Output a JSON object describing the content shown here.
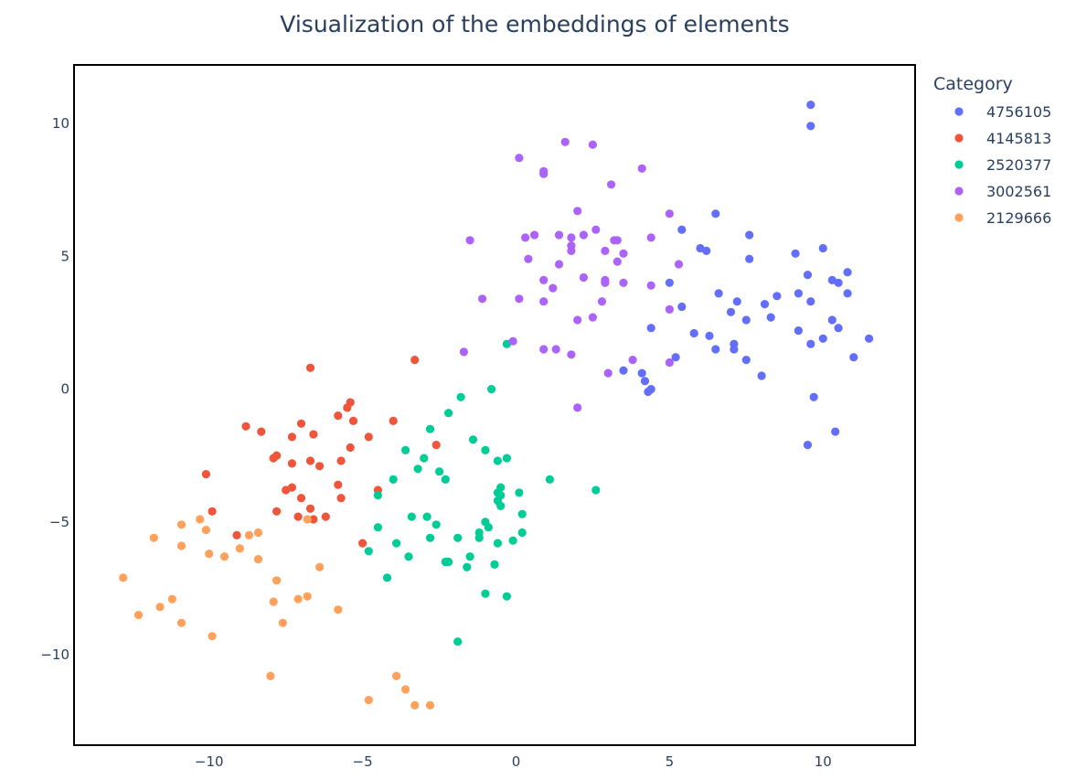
{
  "chart_data": {
    "type": "scatter",
    "title": "Visualization of the embeddings of elements",
    "xlabel": "",
    "ylabel": "",
    "xlim": [
      -14.4,
      13.0
    ],
    "ylim": [
      -13.4,
      12.2
    ],
    "x_ticks": [
      -10,
      -5,
      0,
      5,
      10
    ],
    "x_tick_labels": [
      "−10",
      "−5",
      "0",
      "5",
      "10"
    ],
    "y_ticks": [
      -10,
      -5,
      0,
      5,
      10
    ],
    "y_tick_labels": [
      "−10",
      "−5",
      "0",
      "5",
      "10"
    ],
    "grid": false,
    "legend": {
      "title": "Category",
      "placement": "right"
    },
    "series": [
      {
        "name": "4756105",
        "color": "#636efa",
        "points": [
          [
            9.6,
            10.7
          ],
          [
            9.6,
            9.9
          ],
          [
            6.5,
            6.6
          ],
          [
            5.4,
            6.0
          ],
          [
            7.6,
            5.8
          ],
          [
            6.0,
            5.3
          ],
          [
            6.2,
            5.2
          ],
          [
            7.6,
            4.9
          ],
          [
            9.1,
            5.1
          ],
          [
            10.0,
            5.3
          ],
          [
            9.5,
            4.3
          ],
          [
            10.3,
            4.1
          ],
          [
            10.5,
            4.0
          ],
          [
            10.8,
            4.4
          ],
          [
            10.8,
            3.6
          ],
          [
            5.0,
            4.0
          ],
          [
            6.6,
            3.6
          ],
          [
            7.2,
            3.3
          ],
          [
            8.1,
            3.2
          ],
          [
            8.5,
            3.5
          ],
          [
            9.2,
            3.6
          ],
          [
            9.6,
            3.3
          ],
          [
            5.4,
            3.1
          ],
          [
            7.0,
            2.9
          ],
          [
            7.5,
            2.6
          ],
          [
            8.3,
            2.7
          ],
          [
            10.3,
            2.6
          ],
          [
            10.5,
            2.3
          ],
          [
            11.5,
            1.9
          ],
          [
            4.4,
            2.3
          ],
          [
            5.8,
            2.1
          ],
          [
            6.3,
            2.0
          ],
          [
            9.2,
            2.2
          ],
          [
            10.0,
            1.9
          ],
          [
            9.6,
            1.7
          ],
          [
            7.1,
            1.7
          ],
          [
            7.1,
            1.5
          ],
          [
            6.5,
            1.5
          ],
          [
            11.0,
            1.2
          ],
          [
            5.2,
            1.2
          ],
          [
            7.5,
            1.1
          ],
          [
            3.5,
            0.7
          ],
          [
            4.1,
            0.6
          ],
          [
            8.0,
            0.5
          ],
          [
            4.2,
            0.3
          ],
          [
            4.4,
            0.0
          ],
          [
            4.3,
            -0.1
          ],
          [
            9.7,
            -0.3
          ],
          [
            10.4,
            -1.6
          ],
          [
            9.5,
            -2.1
          ]
        ]
      },
      {
        "name": "4145813",
        "color": "#EF553B",
        "points": [
          [
            -3.3,
            1.1
          ],
          [
            -6.7,
            0.8
          ],
          [
            -5.4,
            -0.5
          ],
          [
            -5.5,
            -0.7
          ],
          [
            -5.8,
            -1.0
          ],
          [
            -5.3,
            -1.2
          ],
          [
            -4.0,
            -1.2
          ],
          [
            -7.0,
            -1.3
          ],
          [
            -8.8,
            -1.4
          ],
          [
            -8.3,
            -1.6
          ],
          [
            -6.6,
            -1.7
          ],
          [
            -7.3,
            -1.8
          ],
          [
            -4.8,
            -1.8
          ],
          [
            -2.6,
            -2.1
          ],
          [
            -5.4,
            -2.2
          ],
          [
            -7.8,
            -2.5
          ],
          [
            -7.9,
            -2.6
          ],
          [
            -6.7,
            -2.7
          ],
          [
            -5.7,
            -2.7
          ],
          [
            -7.3,
            -2.8
          ],
          [
            -6.4,
            -2.9
          ],
          [
            -10.1,
            -3.2
          ],
          [
            -5.8,
            -3.6
          ],
          [
            -7.3,
            -3.7
          ],
          [
            -7.5,
            -3.8
          ],
          [
            -4.5,
            -3.8
          ],
          [
            -7.0,
            -4.1
          ],
          [
            -5.7,
            -4.1
          ],
          [
            -6.7,
            -4.5
          ],
          [
            -7.8,
            -4.6
          ],
          [
            -9.9,
            -4.6
          ],
          [
            -7.1,
            -4.8
          ],
          [
            -6.2,
            -4.8
          ],
          [
            -6.6,
            -4.9
          ],
          [
            -9.1,
            -5.5
          ],
          [
            -5.0,
            -5.8
          ]
        ]
      },
      {
        "name": "2520377",
        "color": "#00cc96",
        "points": [
          [
            -0.3,
            1.7
          ],
          [
            -0.8,
            0.0
          ],
          [
            -1.8,
            -0.3
          ],
          [
            -2.2,
            -0.9
          ],
          [
            -2.8,
            -1.5
          ],
          [
            -1.4,
            -1.9
          ],
          [
            -3.6,
            -2.3
          ],
          [
            -1.0,
            -2.3
          ],
          [
            -3.0,
            -2.6
          ],
          [
            -0.3,
            -2.6
          ],
          [
            -0.6,
            -2.7
          ],
          [
            -3.2,
            -3.0
          ],
          [
            -2.5,
            -3.1
          ],
          [
            -2.3,
            -3.4
          ],
          [
            -4.0,
            -3.4
          ],
          [
            1.1,
            -3.4
          ],
          [
            -0.5,
            -3.7
          ],
          [
            2.6,
            -3.8
          ],
          [
            -0.6,
            -3.9
          ],
          [
            0.1,
            -3.9
          ],
          [
            -4.5,
            -4.0
          ],
          [
            -0.5,
            -4.0
          ],
          [
            -0.6,
            -4.2
          ],
          [
            -0.5,
            -4.4
          ],
          [
            0.2,
            -4.7
          ],
          [
            -3.4,
            -4.8
          ],
          [
            -2.9,
            -4.8
          ],
          [
            -1.0,
            -5.0
          ],
          [
            -2.6,
            -5.1
          ],
          [
            -0.9,
            -5.2
          ],
          [
            -4.5,
            -5.2
          ],
          [
            -1.2,
            -5.4
          ],
          [
            0.2,
            -5.4
          ],
          [
            -1.2,
            -5.6
          ],
          [
            -3.9,
            -5.8
          ],
          [
            -2.8,
            -5.6
          ],
          [
            -1.9,
            -5.6
          ],
          [
            -0.1,
            -5.7
          ],
          [
            -0.6,
            -5.8
          ],
          [
            -4.8,
            -6.1
          ],
          [
            -3.5,
            -6.3
          ],
          [
            -1.5,
            -6.3
          ],
          [
            -2.3,
            -6.5
          ],
          [
            -2.2,
            -6.5
          ],
          [
            -1.6,
            -6.7
          ],
          [
            -0.7,
            -6.6
          ],
          [
            -4.2,
            -7.1
          ],
          [
            -1.0,
            -7.7
          ],
          [
            -0.3,
            -7.8
          ],
          [
            -1.9,
            -9.5
          ]
        ]
      },
      {
        "name": "3002561",
        "color": "#ab63fa",
        "points": [
          [
            1.6,
            9.3
          ],
          [
            2.5,
            9.2
          ],
          [
            0.1,
            8.7
          ],
          [
            0.9,
            8.2
          ],
          [
            0.9,
            8.1
          ],
          [
            4.1,
            8.3
          ],
          [
            3.1,
            7.7
          ],
          [
            2.0,
            6.7
          ],
          [
            5.0,
            6.6
          ],
          [
            2.6,
            6.0
          ],
          [
            0.6,
            5.8
          ],
          [
            1.4,
            5.8
          ],
          [
            1.8,
            5.7
          ],
          [
            2.2,
            5.8
          ],
          [
            0.3,
            5.7
          ],
          [
            3.3,
            5.6
          ],
          [
            3.2,
            5.6
          ],
          [
            4.4,
            5.7
          ],
          [
            -1.5,
            5.6
          ],
          [
            1.8,
            5.4
          ],
          [
            1.8,
            5.2
          ],
          [
            2.9,
            5.2
          ],
          [
            3.5,
            5.1
          ],
          [
            0.4,
            4.9
          ],
          [
            1.4,
            4.7
          ],
          [
            3.3,
            4.8
          ],
          [
            5.3,
            4.7
          ],
          [
            2.2,
            4.2
          ],
          [
            0.9,
            4.1
          ],
          [
            2.9,
            4.0
          ],
          [
            2.9,
            4.1
          ],
          [
            3.5,
            4.0
          ],
          [
            1.2,
            3.8
          ],
          [
            4.4,
            3.9
          ],
          [
            -1.1,
            3.4
          ],
          [
            0.1,
            3.4
          ],
          [
            0.9,
            3.3
          ],
          [
            2.8,
            3.3
          ],
          [
            5.0,
            3.0
          ],
          [
            2.5,
            2.7
          ],
          [
            2.0,
            2.6
          ],
          [
            -0.1,
            1.8
          ],
          [
            0.9,
            1.5
          ],
          [
            1.3,
            1.5
          ],
          [
            1.8,
            1.3
          ],
          [
            -1.7,
            1.4
          ],
          [
            3.8,
            1.1
          ],
          [
            5.0,
            1.0
          ],
          [
            3.0,
            0.6
          ],
          [
            2.0,
            -0.7
          ]
        ]
      },
      {
        "name": "2129666",
        "color": "#FFA15A",
        "points": [
          [
            -10.3,
            -4.9
          ],
          [
            -10.9,
            -5.1
          ],
          [
            -10.1,
            -5.3
          ],
          [
            -8.7,
            -5.5
          ],
          [
            -8.4,
            -5.4
          ],
          [
            -11.8,
            -5.6
          ],
          [
            -9.0,
            -6.0
          ],
          [
            -10.9,
            -5.9
          ],
          [
            -10.0,
            -6.2
          ],
          [
            -9.5,
            -6.3
          ],
          [
            -8.4,
            -6.4
          ],
          [
            -6.4,
            -6.7
          ],
          [
            -6.8,
            -4.9
          ],
          [
            -12.8,
            -7.1
          ],
          [
            -7.8,
            -7.2
          ],
          [
            -12.3,
            -8.5
          ],
          [
            -11.6,
            -8.2
          ],
          [
            -11.2,
            -7.9
          ],
          [
            -10.9,
            -8.8
          ],
          [
            -9.9,
            -9.3
          ],
          [
            -7.9,
            -8.0
          ],
          [
            -7.1,
            -7.9
          ],
          [
            -6.8,
            -7.8
          ],
          [
            -7.6,
            -8.8
          ],
          [
            -5.8,
            -8.3
          ],
          [
            -8.0,
            -10.8
          ],
          [
            -3.9,
            -10.8
          ],
          [
            -4.8,
            -11.7
          ],
          [
            -3.6,
            -11.3
          ],
          [
            -3.3,
            -11.9
          ],
          [
            -2.8,
            -11.9
          ]
        ]
      }
    ]
  }
}
